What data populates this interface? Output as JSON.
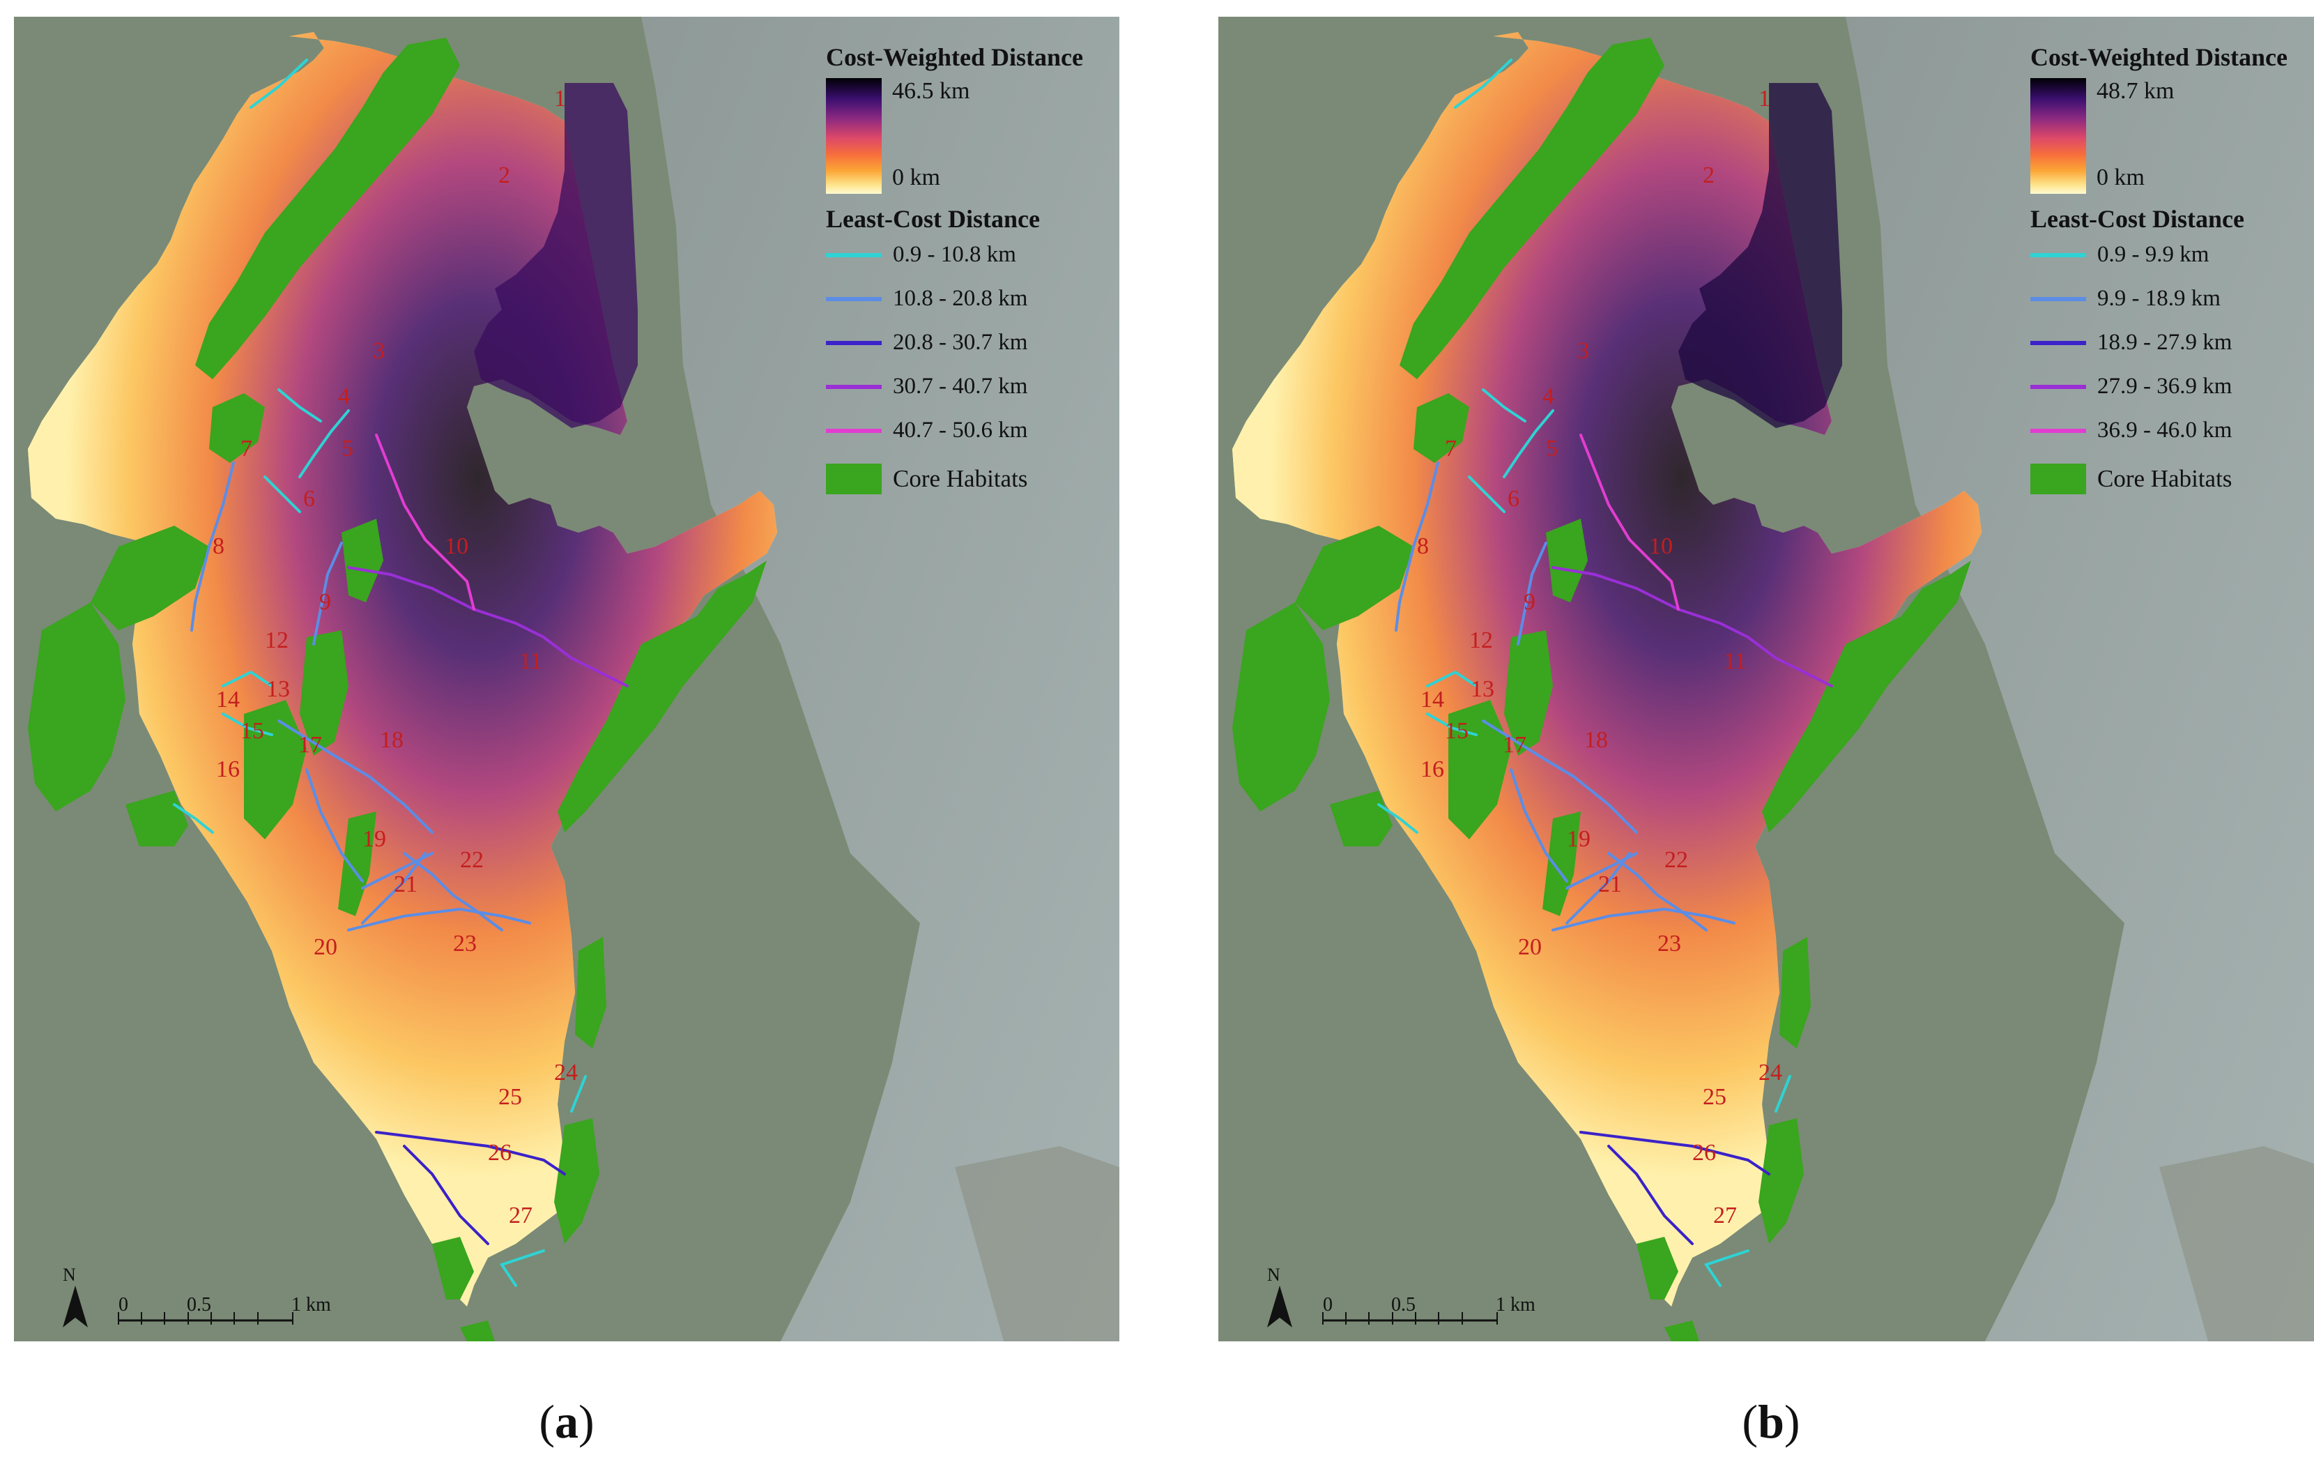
{
  "panels": [
    {
      "id": "a",
      "caption_letter": "a",
      "legend": {
        "cost_title": "Cost-Weighted Distance",
        "cost_max": "46.5 km",
        "cost_min": "0 km",
        "lc_title": "Least-Cost Distance",
        "classes": [
          {
            "label": "0.9 - 10.8 km",
            "color": "#2ed3d4"
          },
          {
            "label": "10.8 - 20.8 km",
            "color": "#5b8de6"
          },
          {
            "label": "20.8 - 30.7 km",
            "color": "#3b22c9"
          },
          {
            "label": "30.7 - 40.7 km",
            "color": "#9a2fd6"
          },
          {
            "label": "40.7 - 50.6 km",
            "color": "#e23dd1"
          }
        ],
        "core_label": "Core Habitats"
      },
      "scale": {
        "zero": "0",
        "half": "0.5",
        "one": "1 km"
      },
      "north": "N"
    },
    {
      "id": "b",
      "caption_letter": "b",
      "legend": {
        "cost_title": "Cost-Weighted Distance",
        "cost_max": "48.7 km",
        "cost_min": "0 km",
        "lc_title": "Least-Cost Distance",
        "classes": [
          {
            "label": "0.9 - 9.9 km",
            "color": "#2ed3d4"
          },
          {
            "label": "9.9 - 18.9 km",
            "color": "#5b8de6"
          },
          {
            "label": "18.9 - 27.9 km",
            "color": "#3b22c9"
          },
          {
            "label": "27.9 - 36.9 km",
            "color": "#9a2fd6"
          },
          {
            "label": "36.9 - 46.0 km",
            "color": "#e23dd1"
          }
        ],
        "core_label": "Core Habitats"
      },
      "scale": {
        "zero": "0",
        "half": "0.5",
        "one": "1 km"
      },
      "north": "N"
    }
  ],
  "corridor_labels": [
    "1",
    "2",
    "3",
    "4",
    "5",
    "6",
    "7",
    "8",
    "9",
    "10",
    "11",
    "12",
    "13",
    "14",
    "15",
    "16",
    "17",
    "18",
    "19",
    "20",
    "21",
    "22",
    "23",
    "24",
    "25",
    "26",
    "27"
  ],
  "colors": {
    "core_habitat": "#3aa51e",
    "label_red": "#c41e1e",
    "sea": "#9aa7a5",
    "land": "#7a8a76"
  }
}
